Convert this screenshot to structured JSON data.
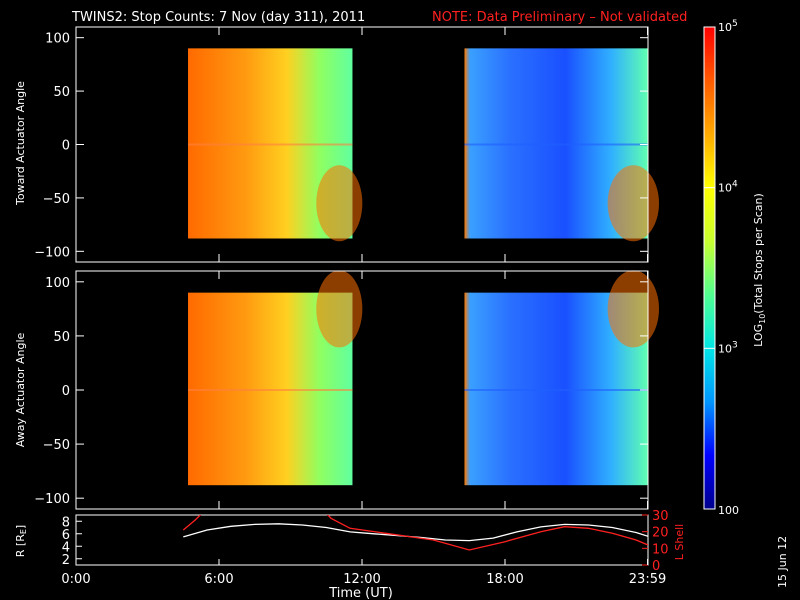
{
  "title": {
    "main": "TWINS2: Stop Counts:  7 Nov (day 311), 2011",
    "note": "NOTE: Data Preliminary – Not validated"
  },
  "stamp": "15 Jun 12",
  "colorbar": {
    "label": "LOG10(Total Stops per Scan)",
    "label_base": "LOG",
    "label_sub": "10",
    "label_rest": "(Total Stops per Scan)",
    "range": [
      100,
      100000
    ],
    "scale": "log",
    "tick_labels": [
      {
        "value": 100000,
        "base": "10",
        "exp": "5"
      },
      {
        "value": 10000,
        "base": "10",
        "exp": "4"
      },
      {
        "value": 1000,
        "base": "10",
        "exp": "3"
      },
      {
        "value": 100,
        "base": "100",
        "exp": ""
      }
    ],
    "colors": [
      "#00008c",
      "#0000ff",
      "#0096ff",
      "#00e6e6",
      "#50ff90",
      "#c8ff30",
      "#ffff00",
      "#ffaa00",
      "#ff5a00",
      "#ff0000"
    ]
  },
  "chart_data": [
    {
      "type": "heatmap",
      "panel": "toward",
      "ylabel": "Toward Actuator Angle",
      "x_range_hours": [
        0,
        24
      ],
      "ylim": [
        -110,
        110
      ],
      "y_ticks": [
        100,
        50,
        0,
        -50,
        -100
      ],
      "y_tick_labels": [
        "100",
        "50",
        "0",
        "−50",
        "−100"
      ],
      "data_coverage_hours": [
        [
          4.7,
          11.6
        ],
        [
          16.3,
          24.0
        ]
      ],
      "angle_range": [
        -88,
        90
      ],
      "background": "no data"
    },
    {
      "type": "heatmap",
      "panel": "away",
      "ylabel": "Away Actuator Angle",
      "x_range_hours": [
        0,
        24
      ],
      "ylim": [
        -110,
        110
      ],
      "y_ticks": [
        100,
        50,
        0,
        -50,
        -100
      ],
      "y_tick_labels": [
        "100",
        "50",
        "0",
        "−50",
        "−100"
      ],
      "data_coverage_hours": [
        [
          4.7,
          11.6
        ],
        [
          16.3,
          24.0
        ]
      ],
      "angle_range": [
        -88,
        90
      ],
      "background": "no data"
    },
    {
      "type": "line",
      "panel": "orbit",
      "ylabel_left": "R [R",
      "ylabel_left_sub": "E",
      "ylabel_left_end": "]",
      "ylabel_right": "L Shell",
      "ylim_left": [
        1,
        9
      ],
      "ylim_right": [
        0,
        30
      ],
      "y_ticks_left": [
        2,
        4,
        6,
        8
      ],
      "y_tick_labels_left": [
        "2",
        "4",
        "6",
        "8"
      ],
      "y_ticks_right": [
        0,
        10,
        20,
        30
      ],
      "y_tick_labels_right": [
        "0",
        "10",
        "20",
        "30"
      ],
      "xlabel": "Time (UT)",
      "x_ticks_hours": [
        0,
        6,
        12,
        18,
        23.98
      ],
      "x_tick_labels": [
        "0:00",
        "6:00",
        "12:00",
        "18:00",
        "23:59"
      ],
      "series": [
        {
          "axis": "left",
          "color": "#ffffff",
          "x": [
            4.5,
            5.5,
            6.5,
            7.5,
            8.5,
            9.5,
            10.5,
            11.5,
            12.5,
            13.5,
            14.5,
            15.5,
            16.5,
            17.5,
            18.5,
            19.5,
            20.5,
            21.5,
            22.5,
            23.5,
            24.0
          ],
          "y": [
            5.5,
            6.6,
            7.2,
            7.5,
            7.6,
            7.4,
            7.0,
            6.3,
            6.0,
            5.7,
            5.4,
            5.0,
            4.9,
            5.3,
            6.3,
            7.1,
            7.5,
            7.4,
            7.0,
            6.2,
            5.6
          ]
        },
        {
          "axis": "right",
          "color": "#ff2020",
          "x": [
            4.5,
            5.0,
            5.5,
            10.3,
            10.7,
            11.5,
            13.0,
            15.0,
            16.5,
            18.0,
            19.5,
            20.5,
            21.5,
            22.5,
            23.5,
            24.0
          ],
          "y": [
            21,
            27,
            34,
            34,
            28,
            22,
            19,
            15,
            9,
            14,
            20,
            23,
            22,
            19,
            15,
            12
          ]
        }
      ]
    }
  ]
}
